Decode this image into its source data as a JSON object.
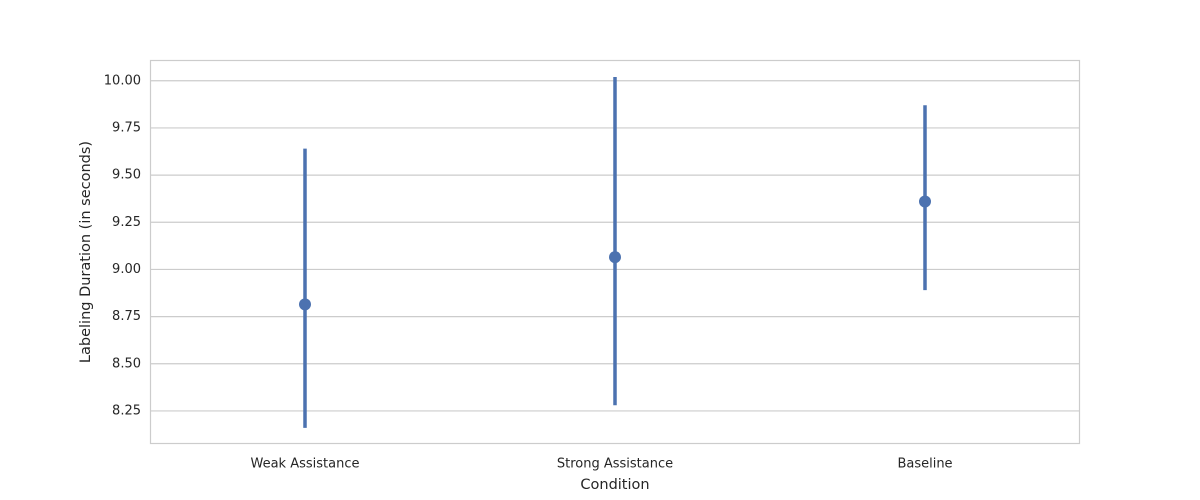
{
  "chart_data": {
    "type": "pointplot",
    "xlabel": "Condition",
    "ylabel": "Labeling Duration (in seconds)",
    "categories": [
      "Weak Assistance",
      "Strong Assistance",
      "Baseline"
    ],
    "values": [
      8.815,
      9.065,
      9.36
    ],
    "ci_low": [
      8.16,
      8.28,
      8.89
    ],
    "ci_high": [
      9.64,
      10.02,
      9.87
    ],
    "color": "#4c72b0",
    "ylim": [
      8.08,
      10.11
    ],
    "yticks": [
      8.25,
      {
        "value": 8.5,
        "label": "8.50"
      },
      8.75,
      {
        "value": 9.0,
        "label": "9.00"
      },
      9.25,
      {
        "value": 9.5,
        "label": "9.50"
      },
      9.75,
      {
        "value": 10.0,
        "label": "10.00"
      }
    ],
    "grid": true
  }
}
